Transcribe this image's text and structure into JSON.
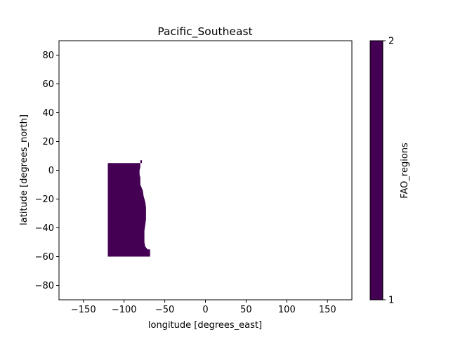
{
  "chart_data": {
    "type": "heatmap",
    "title": "Pacific_Southeast",
    "xlabel": "longitude [degrees_east]",
    "ylabel": "latitude [degrees_north]",
    "xlim": [
      -180,
      180
    ],
    "ylim": [
      -90,
      90
    ],
    "x_ticks": [
      -150,
      -100,
      -50,
      0,
      50,
      100,
      150
    ],
    "y_ticks": [
      -80,
      -60,
      -40,
      -20,
      0,
      20,
      40,
      60,
      80
    ],
    "region": {
      "name": "Pacific_Southeast",
      "value": 1,
      "boundary_lonlat": [
        [
          -120,
          5
        ],
        [
          -78,
          5
        ],
        [
          -78,
          7
        ],
        [
          -80,
          7
        ],
        [
          -80,
          2
        ],
        [
          -81,
          0
        ],
        [
          -81,
          -3
        ],
        [
          -80,
          -5
        ],
        [
          -80,
          -10
        ],
        [
          -77,
          -14
        ],
        [
          -76,
          -18
        ],
        [
          -74,
          -22
        ],
        [
          -73,
          -26
        ],
        [
          -73,
          -30
        ],
        [
          -73,
          -34
        ],
        [
          -74,
          -38
        ],
        [
          -75,
          -42
        ],
        [
          -75,
          -46
        ],
        [
          -75,
          -50
        ],
        [
          -74,
          -53
        ],
        [
          -71,
          -55
        ],
        [
          -68,
          -55
        ],
        [
          -68,
          -60
        ],
        [
          -120,
          -60
        ]
      ]
    },
    "colorbar": {
      "label": "FAO_regions",
      "min": 1,
      "max": 2,
      "ticks": [
        1,
        2
      ],
      "color": "#440154"
    },
    "grid": false,
    "legend": "none"
  }
}
